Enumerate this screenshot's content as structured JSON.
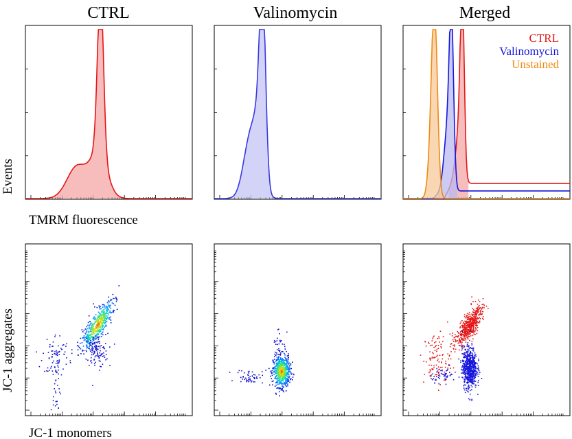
{
  "titles": [
    "CTRL",
    "Valinomycin",
    "Merged"
  ],
  "labels": {
    "histogram_y": "Events",
    "histogram_x": "TMRM fluorescence",
    "scatter_y": "JC-1 aggregates",
    "scatter_x": "JC-1 monomers"
  },
  "legend": [
    {
      "label": "CTRL",
      "color": "#e51515"
    },
    {
      "label": "Valinomycin",
      "color": "#1515dd"
    },
    {
      "label": "Unstained",
      "color": "#f08a12"
    }
  ],
  "chart_data": [
    {
      "type": "area",
      "title": "CTRL",
      "xlabel": "TMRM fluorescence",
      "ylabel": "Events",
      "x_scale": "log",
      "series": [
        {
          "name": "CTRL",
          "color": "#e51515",
          "fill": "#f4a6a6",
          "peaks": [
            {
              "center": 0.31,
              "height": 0.19,
              "width": 0.06
            },
            {
              "center": 0.45,
              "height": 0.98,
              "width": 0.018
            },
            {
              "center": 0.44,
              "height": 0.26,
              "width": 0.05
            }
          ],
          "baseline": 0.0
        }
      ]
    },
    {
      "type": "area",
      "title": "Valinomycin",
      "x_scale": "log",
      "series": [
        {
          "name": "Valinomycin",
          "color": "#3838e0",
          "fill": "#c4c4f4",
          "peaks": [
            {
              "center": 0.215,
              "height": 0.35,
              "width": 0.04
            },
            {
              "center": 0.29,
              "height": 0.98,
              "width": 0.018
            },
            {
              "center": 0.27,
              "height": 0.33,
              "width": 0.03
            }
          ],
          "baseline": 0.0
        }
      ]
    },
    {
      "type": "area",
      "title": "Merged",
      "x_scale": "log",
      "series": [
        {
          "name": "CTRL",
          "color": "#e51515",
          "fill": "#f4a6a6",
          "peaks": [
            {
              "center": 0.355,
              "height": 0.97,
              "width": 0.012
            },
            {
              "center": 0.335,
              "height": 0.3,
              "width": 0.02
            }
          ],
          "baseline": 0.09
        },
        {
          "name": "Valinomycin",
          "color": "#1515dd",
          "fill": "#b9b9f0",
          "peaks": [
            {
              "center": 0.29,
              "height": 0.94,
              "width": 0.013
            },
            {
              "center": 0.265,
              "height": 0.35,
              "width": 0.02
            }
          ],
          "baseline": 0.045
        },
        {
          "name": "Unstained",
          "color": "#f08a12",
          "fill": "#f7c99a",
          "peaks": [
            {
              "center": 0.19,
              "height": 0.88,
              "width": 0.017
            },
            {
              "center": 0.175,
              "height": 0.35,
              "width": 0.02
            }
          ],
          "baseline": 0.0
        }
      ]
    },
    {
      "type": "scatter",
      "title": "CTRL",
      "xlabel": "JC-1 monomers",
      "ylabel": "JC-1 aggregates",
      "x_scale": "log",
      "y_scale": "log",
      "clusters": [
        {
          "cx": 0.43,
          "cy": 0.53,
          "sx": 0.025,
          "sy": 0.08,
          "rot": -0.55,
          "n": 520,
          "density_colored": true
        },
        {
          "cx": 0.42,
          "cy": 0.38,
          "sx": 0.035,
          "sy": 0.05,
          "rot": 0,
          "n": 120,
          "density_colored": false
        },
        {
          "cx": 0.18,
          "cy": 0.36,
          "sx": 0.04,
          "sy": 0.06,
          "rot": 0,
          "n": 70,
          "density_colored": false
        },
        {
          "cx": 0.18,
          "cy": 0.17,
          "sx": 0.015,
          "sy": 0.09,
          "rot": 0,
          "n": 35,
          "density_colored": false
        }
      ]
    },
    {
      "type": "scatter",
      "title": "Valinomycin",
      "x_scale": "log",
      "y_scale": "log",
      "clusters": [
        {
          "cx": 0.4,
          "cy": 0.26,
          "sx": 0.025,
          "sy": 0.045,
          "rot": 0,
          "n": 650,
          "density_colored": true
        },
        {
          "cx": 0.21,
          "cy": 0.23,
          "sx": 0.04,
          "sy": 0.02,
          "rot": 0,
          "n": 50,
          "density_colored": false
        },
        {
          "cx": 0.39,
          "cy": 0.43,
          "sx": 0.02,
          "sy": 0.05,
          "rot": 0,
          "n": 25,
          "density_colored": false
        }
      ]
    },
    {
      "type": "scatter",
      "title": "Merged",
      "x_scale": "log",
      "y_scale": "log",
      "series": [
        {
          "name": "CTRL",
          "color": "#e51515",
          "clusters": [
            {
              "cx": 0.395,
              "cy": 0.53,
              "sx": 0.022,
              "sy": 0.07,
              "rot": -0.55,
              "n": 520
            },
            {
              "cx": 0.2,
              "cy": 0.33,
              "sx": 0.04,
              "sy": 0.08,
              "rot": 0,
              "n": 110
            }
          ]
        },
        {
          "name": "Valinomycin",
          "color": "#1515dd",
          "clusters": [
            {
              "cx": 0.395,
              "cy": 0.28,
              "sx": 0.022,
              "sy": 0.06,
              "rot": 0,
              "n": 650
            },
            {
              "cx": 0.24,
              "cy": 0.24,
              "sx": 0.04,
              "sy": 0.02,
              "rot": 0,
              "n": 50
            }
          ]
        }
      ]
    }
  ]
}
